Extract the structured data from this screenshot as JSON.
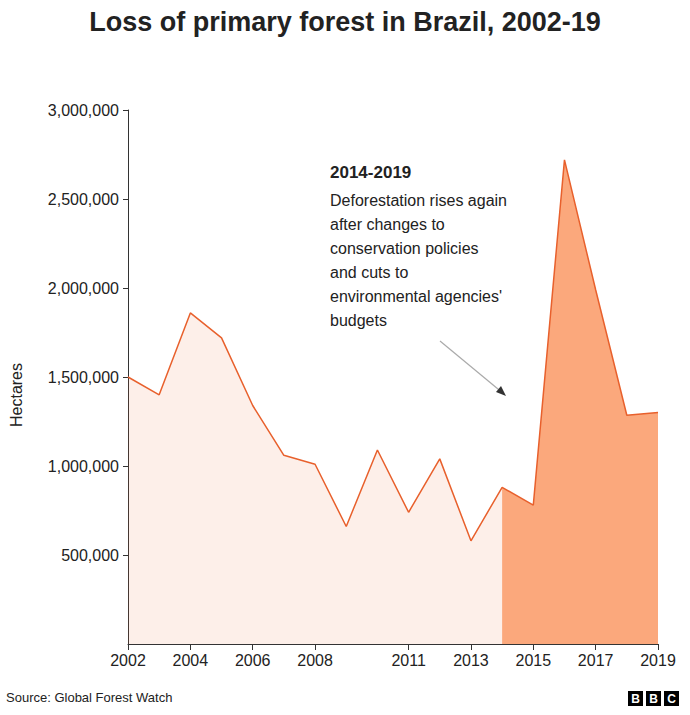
{
  "chart_data": {
    "type": "area",
    "title": "Loss of primary forest in Brazil, 2002-19",
    "y_label": "Hectares",
    "source": "Source: Global Forest Watch",
    "logo": "BBC",
    "x": [
      2002,
      2003,
      2004,
      2005,
      2006,
      2007,
      2008,
      2009,
      2010,
      2011,
      2012,
      2013,
      2014,
      2015,
      2016,
      2017,
      2018,
      2019
    ],
    "values": [
      1500000,
      1400000,
      1860000,
      1720000,
      1340000,
      1060000,
      1010000,
      660000,
      1090000,
      740000,
      1040000,
      580000,
      880000,
      780000,
      2720000,
      1990000,
      1285000,
      1300000
    ],
    "color": "#e8602c",
    "xlim": [
      2002,
      2019
    ],
    "xticks": [
      2002,
      2004,
      2006,
      2008,
      2011,
      2013,
      2015,
      2017,
      2019
    ],
    "ylim": [
      0,
      3000000
    ],
    "yticks": [
      {
        "value": 500000,
        "label": "500,000"
      },
      {
        "value": 1000000,
        "label": "1,000,000"
      },
      {
        "value": 1500000,
        "label": "1,500,000"
      },
      {
        "value": 2000000,
        "label": "2,000,000"
      },
      {
        "value": 2500000,
        "label": "2,500,000"
      },
      {
        "value": 3000000,
        "label": "3,000,000"
      }
    ],
    "grid": false,
    "annotation": {
      "title": "2014-2019",
      "lines": [
        "Deforestation rises again",
        "after changes to",
        "conservation policies",
        "and cuts to",
        "environmental agencies'",
        "budgets"
      ],
      "x_range": [
        2014,
        2019
      ],
      "color": "#fba87c"
    }
  }
}
